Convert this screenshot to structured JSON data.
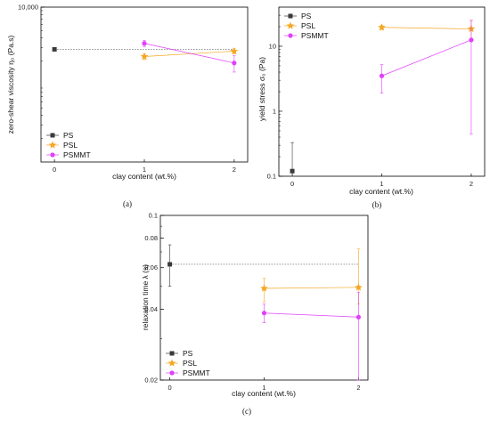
{
  "colors": {
    "PS": "#3a3a3a",
    "PSL": "#f5a623",
    "PSMMT": "#e040fb",
    "axis": "#000000"
  },
  "chart_data": [
    {
      "type": "scatter",
      "caption": "(a)",
      "xlabel": "clay content (wt.%)",
      "ylabel": "zero-shear viscosity η₀ (Pa.s)",
      "xlim": [
        -0.15,
        2.15
      ],
      "yscale": "log",
      "ylim": [
        100,
        10000
      ],
      "xticks": [
        0,
        1,
        2
      ],
      "xtick_labels": [
        "0",
        "1",
        "2"
      ],
      "yticks": [
        10000
      ],
      "ytick_labels": [
        "10,000"
      ],
      "legend": "bottom-left",
      "series": [
        {
          "name": "PS",
          "marker": "square",
          "x": [
            0
          ],
          "y": [
            2850
          ],
          "err": [
            90
          ],
          "ref_line": 2850,
          "ref_line_xmax": 2
        },
        {
          "name": "PSL",
          "marker": "star",
          "x": [
            1,
            2
          ],
          "y": [
            2300,
            2700
          ],
          "err": [
            200,
            200
          ]
        },
        {
          "name": "PSMMT",
          "marker": "circle",
          "x": [
            1,
            2
          ],
          "y": [
            3400,
            1900
          ],
          "err": [
            300,
            450
          ]
        }
      ]
    },
    {
      "type": "scatter",
      "caption": "(b)",
      "xlabel": "clay content (wt.%)",
      "ylabel": "yield stress σ₀ (Pa)",
      "xlim": [
        -0.15,
        2.15
      ],
      "yscale": "log",
      "ylim": [
        0.1,
        40
      ],
      "xticks": [
        0,
        1,
        2
      ],
      "xtick_labels": [
        "0",
        "1",
        "2"
      ],
      "yticks": [
        0.1,
        1,
        10
      ],
      "ytick_labels": [
        "0.1",
        "1",
        "10"
      ],
      "legend": "top-left",
      "series": [
        {
          "name": "PS",
          "marker": "square",
          "x": [
            0
          ],
          "y": [
            0.12
          ],
          "err_low": [
            0.1
          ],
          "err_high": [
            0.33
          ]
        },
        {
          "name": "PSL",
          "marker": "star",
          "x": [
            1,
            2
          ],
          "y": [
            19.5,
            18.5
          ],
          "err_low": [
            18,
            13
          ],
          "err_high": [
            21,
            25
          ]
        },
        {
          "name": "PSMMT",
          "marker": "circle",
          "x": [
            1,
            2
          ],
          "y": [
            3.5,
            12.5
          ],
          "err_low": [
            1.9,
            0.45
          ],
          "err_high": [
            5.2,
            25
          ]
        }
      ]
    },
    {
      "type": "scatter",
      "caption": "(c)",
      "xlabel": "clay content (wt.%)",
      "ylabel": "relaxation time λ (s)",
      "xlim": [
        -0.1,
        2.1
      ],
      "yscale": "log",
      "ylim": [
        0.02,
        0.1
      ],
      "xticks": [
        0,
        1,
        2
      ],
      "xtick_labels": [
        "0",
        "1",
        "2"
      ],
      "yticks": [
        0.02,
        0.04,
        0.06,
        0.08,
        0.1
      ],
      "ytick_labels": [
        "0.02",
        "0.04",
        "0.06",
        "0.08",
        "0.1"
      ],
      "legend": "bottom-left",
      "series": [
        {
          "name": "PS",
          "marker": "square",
          "x": [
            0
          ],
          "y": [
            0.062
          ],
          "err_low": [
            0.05
          ],
          "err_high": [
            0.075
          ],
          "ref_line": 0.062,
          "ref_line_xmax": 2
        },
        {
          "name": "PSL",
          "marker": "star",
          "x": [
            1,
            2
          ],
          "y": [
            0.049,
            0.0495
          ],
          "err_low": [
            0.043,
            0.042
          ],
          "err_high": [
            0.054,
            0.072
          ]
        },
        {
          "name": "PSMMT",
          "marker": "circle",
          "x": [
            1,
            2
          ],
          "y": [
            0.0385,
            0.037
          ],
          "err_low": [
            0.035,
            0.02
          ],
          "err_high": [
            0.042,
            0.047
          ]
        }
      ]
    }
  ]
}
